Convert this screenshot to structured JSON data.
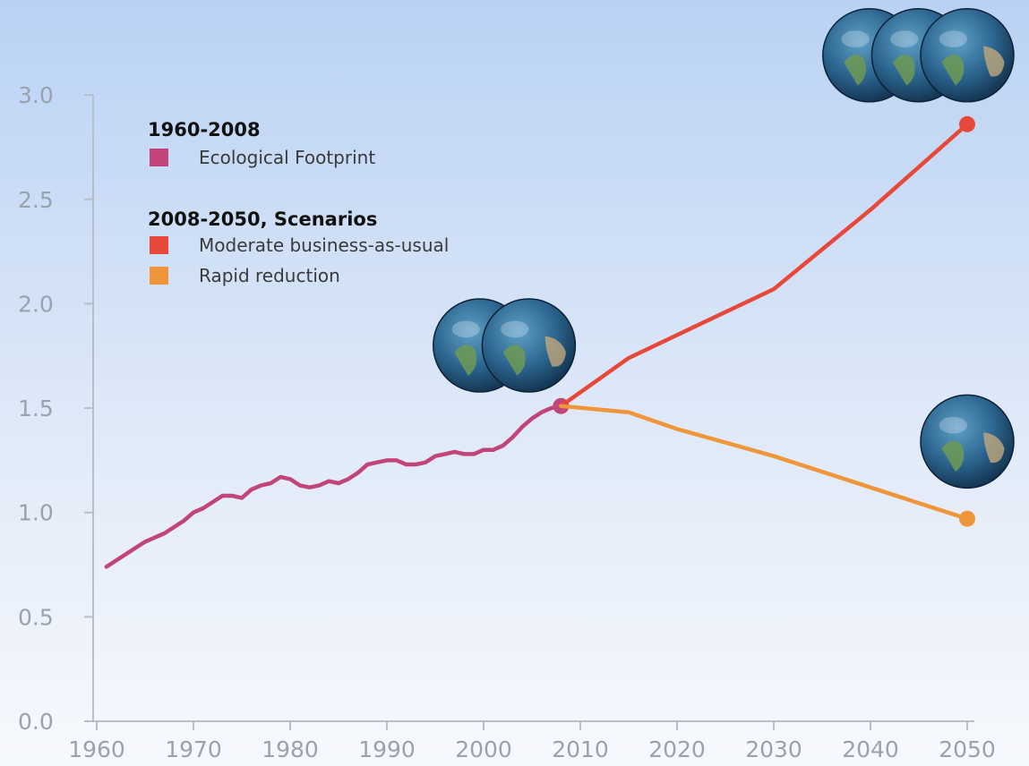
{
  "chart_data": {
    "type": "line",
    "title": "",
    "xlabel": "",
    "ylabel": "",
    "xlim": [
      1960,
      2050
    ],
    "ylim": [
      0,
      3.0
    ],
    "x_ticks": [
      "1960",
      "1970",
      "1980",
      "1990",
      "2000",
      "2010",
      "2020",
      "2030",
      "2040",
      "2050"
    ],
    "y_ticks": [
      "0.0",
      "0.5",
      "1.0",
      "1.5",
      "2.0",
      "2.5",
      "3.0"
    ],
    "grid": false,
    "legend": {
      "placement": "top-left",
      "groups": [
        {
          "heading": "1960-2008",
          "items": [
            {
              "label": "Ecological Footprint",
              "color": "#c2457a"
            }
          ]
        },
        {
          "heading": "2008-2050, Scenarios",
          "items": [
            {
              "label": "Moderate business-as-usual",
              "color": "#e8483a"
            },
            {
              "label": "Rapid reduction",
              "color": "#f0963a"
            }
          ]
        }
      ]
    },
    "series": [
      {
        "name": "Ecological Footprint",
        "color": "#c2457a",
        "x": [
          1961,
          1962,
          1963,
          1964,
          1965,
          1966,
          1967,
          1968,
          1969,
          1970,
          1971,
          1972,
          1973,
          1974,
          1975,
          1976,
          1977,
          1978,
          1979,
          1980,
          1981,
          1982,
          1983,
          1984,
          1985,
          1986,
          1987,
          1988,
          1989,
          1990,
          1991,
          1992,
          1993,
          1994,
          1995,
          1996,
          1997,
          1998,
          1999,
          2000,
          2001,
          2002,
          2003,
          2004,
          2005,
          2006,
          2007,
          2008
        ],
        "y": [
          0.74,
          0.77,
          0.8,
          0.83,
          0.86,
          0.88,
          0.9,
          0.93,
          0.96,
          1.0,
          1.02,
          1.05,
          1.08,
          1.08,
          1.07,
          1.11,
          1.13,
          1.14,
          1.17,
          1.16,
          1.13,
          1.12,
          1.13,
          1.15,
          1.14,
          1.16,
          1.19,
          1.23,
          1.24,
          1.25,
          1.25,
          1.23,
          1.23,
          1.24,
          1.27,
          1.28,
          1.29,
          1.28,
          1.28,
          1.3,
          1.3,
          1.32,
          1.36,
          1.41,
          1.45,
          1.48,
          1.5,
          1.51
        ],
        "end_marker": true
      },
      {
        "name": "Moderate business-as-usual",
        "color": "#e8483a",
        "x": [
          2008,
          2015,
          2020,
          2030,
          2040,
          2050
        ],
        "y": [
          1.51,
          1.74,
          1.85,
          2.07,
          2.45,
          2.86
        ],
        "end_marker": true
      },
      {
        "name": "Rapid reduction",
        "color": "#f0963a",
        "x": [
          2008,
          2015,
          2020,
          2030,
          2040,
          2050
        ],
        "y": [
          1.51,
          1.48,
          1.4,
          1.27,
          1.12,
          0.97
        ],
        "end_marker": true
      }
    ],
    "earth_icons": [
      {
        "x": 2008,
        "y": 1.8,
        "count": 2
      },
      {
        "x": 2050,
        "y": 3.19,
        "count": 3
      },
      {
        "x": 2050,
        "y": 1.34,
        "count": 1
      }
    ]
  }
}
